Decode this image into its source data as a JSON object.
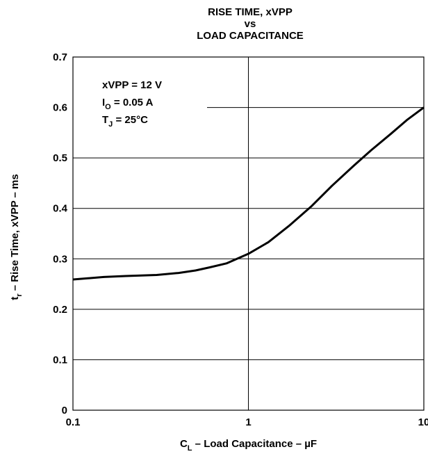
{
  "chart_data": {
    "type": "line",
    "title_lines": [
      "RISE TIME, xVPP",
      "vs",
      "LOAD CAPACITANCE"
    ],
    "xlabel": {
      "main": "C",
      "sub": "L",
      "rest": " – Load Capacitance – µF"
    },
    "ylabel": {
      "main": "t",
      "sub": "r",
      "rest": " – Rise Time, xVPP – ms"
    },
    "x_scale": "log",
    "xlim": [
      0.1,
      10
    ],
    "ylim": [
      0,
      0.7
    ],
    "x_ticks": [
      {
        "value": 0.1,
        "label": "0.1"
      },
      {
        "value": 1,
        "label": "1"
      },
      {
        "value": 10,
        "label": "10"
      }
    ],
    "y_ticks": [
      {
        "value": 0,
        "label": "0"
      },
      {
        "value": 0.1,
        "label": "0.1"
      },
      {
        "value": 0.2,
        "label": "0.2"
      },
      {
        "value": 0.3,
        "label": "0.3"
      },
      {
        "value": 0.4,
        "label": "0.4"
      },
      {
        "value": 0.5,
        "label": "0.5"
      },
      {
        "value": 0.6,
        "label": "0.6"
      },
      {
        "value": 0.7,
        "label": "0.7"
      }
    ],
    "grid": true,
    "annotations": [
      {
        "main": "xVPP = 12 V",
        "sub": "",
        "rest": ""
      },
      {
        "main": "I",
        "sub": "O",
        "rest": " = 0.05 A"
      },
      {
        "main": "T",
        "sub": "J",
        "rest": " = 25°C"
      }
    ],
    "series": [
      {
        "x": [
          0.1,
          0.15,
          0.2,
          0.3,
          0.4,
          0.5,
          0.6,
          0.75,
          1.0,
          1.3,
          1.7,
          2.3,
          3.0,
          4.0,
          5.0,
          6.5,
          8.0,
          10.0
        ],
        "y": [
          0.259,
          0.264,
          0.266,
          0.268,
          0.272,
          0.277,
          0.283,
          0.291,
          0.31,
          0.333,
          0.365,
          0.405,
          0.445,
          0.485,
          0.515,
          0.548,
          0.575,
          0.6
        ]
      }
    ]
  }
}
